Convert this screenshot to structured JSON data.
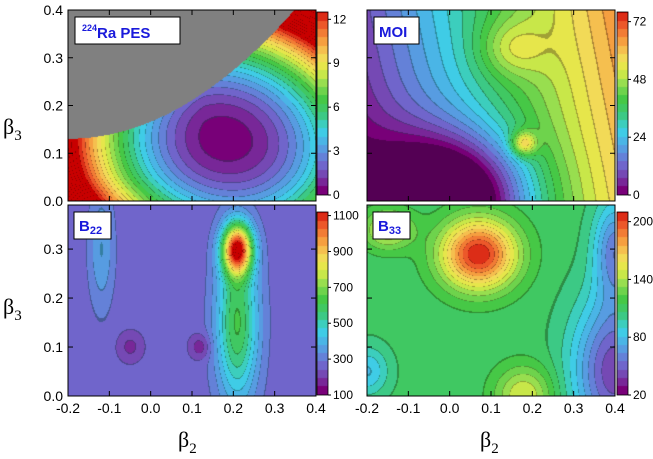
{
  "chart_data": [
    {
      "type": "heatmap",
      "panel": "top-left",
      "label_sup": "224",
      "label_main": "Ra PES",
      "xlim": [
        -0.2,
        0.4
      ],
      "ylim": [
        0.0,
        0.4
      ],
      "colorbar": {
        "range": [
          0,
          12.5
        ],
        "ticks": [
          "0",
          "3",
          "6",
          "9",
          "12"
        ],
        "tick_values": [
          0,
          3,
          6,
          9,
          12
        ]
      },
      "features": [
        {
          "kind": "minimum",
          "x": 0.18,
          "y": 0.13,
          "level": 0.2
        }
      ]
    },
    {
      "type": "heatmap",
      "panel": "top-right",
      "label_main": "MOI",
      "xlim": [
        -0.2,
        0.4
      ],
      "ylim": [
        0.0,
        0.4
      ],
      "colorbar": {
        "range": [
          0,
          76
        ],
        "ticks": [
          "0",
          "24",
          "48",
          "72"
        ],
        "tick_values": [
          0,
          24,
          48,
          72
        ]
      },
      "features": [
        {
          "kind": "minimum",
          "x": 0.0,
          "y": 0.0,
          "level": 2
        }
      ]
    },
    {
      "type": "heatmap",
      "panel": "bottom-left",
      "label_main": "B",
      "label_sub": "22",
      "xlim": [
        -0.2,
        0.4
      ],
      "ylim": [
        0.0,
        0.39
      ],
      "colorbar": {
        "range": [
          100,
          1120
        ],
        "ticks": [
          "100",
          "300",
          "500",
          "700",
          "900",
          "1100"
        ],
        "tick_values": [
          100,
          300,
          500,
          700,
          900,
          1100
        ]
      },
      "features": [
        {
          "kind": "maximum",
          "x": 0.21,
          "y": 0.3,
          "level": 1080
        },
        {
          "kind": "minimum",
          "x": 0.12,
          "y": 0.1,
          "level": 170
        }
      ]
    },
    {
      "type": "heatmap",
      "panel": "bottom-right",
      "label_main": "B",
      "label_sub": "33",
      "xlim": [
        -0.2,
        0.4
      ],
      "ylim": [
        0.0,
        0.39
      ],
      "colorbar": {
        "range": [
          20,
          210
        ],
        "ticks": [
          "20",
          "80",
          "140",
          "200"
        ],
        "tick_values": [
          20,
          80,
          140,
          200
        ]
      },
      "features": [
        {
          "kind": "maximum",
          "x": 0.07,
          "y": 0.29,
          "level": 205
        },
        {
          "kind": "minimum",
          "x": 0.4,
          "y": 0.0,
          "level": 25
        }
      ]
    }
  ],
  "axes": {
    "xlabel_main": "β",
    "xlabel_sub": "2",
    "ylabel_main": "β",
    "ylabel_sub": "3",
    "x_ticks": [
      "-0.2",
      "-0.1",
      "0.0",
      "0.1",
      "0.2",
      "0.3",
      "0.4"
    ],
    "y_ticks_top": [
      "0.0",
      "0.1",
      "0.2",
      "0.3",
      "0.4"
    ],
    "y_ticks_bottom": [
      "0.0",
      "0.1",
      "0.2",
      "0.3"
    ]
  },
  "colors": {
    "low": "#7a007a",
    "mid_low": "#26c6e6",
    "mid": "#3cc850",
    "mid_high": "#f0f03c",
    "high": "#d20000",
    "unphysical_region": "#808080"
  }
}
